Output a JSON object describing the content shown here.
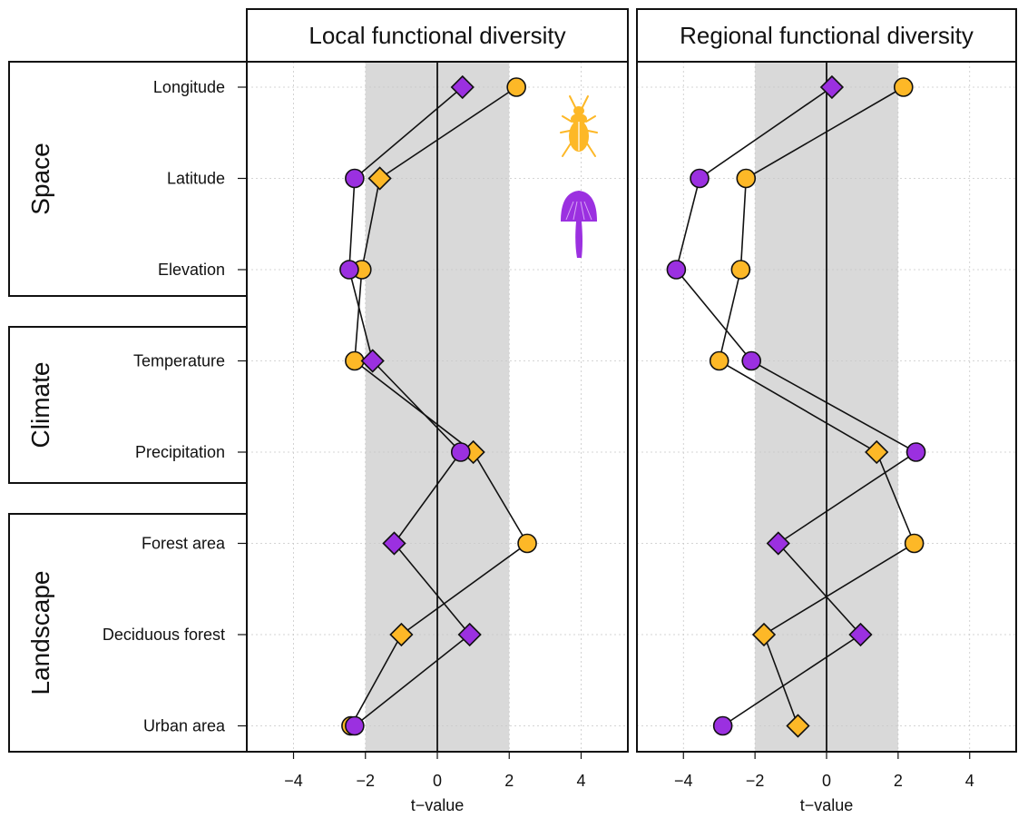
{
  "chart_data": {
    "type": "scatter",
    "xlabel": "t−value",
    "xlim": [
      -5.3,
      5.3
    ],
    "xticks": [
      -4,
      -2,
      0,
      2,
      4
    ],
    "xtick_labels": [
      "−4",
      "−2",
      "0",
      "2",
      "4"
    ],
    "grid": true,
    "shaded_band": [
      -2,
      2
    ],
    "reference_line": 0,
    "colors": {
      "beetles": "#FDB827",
      "fungi": "#9B30E0",
      "band": "#D9D9D9",
      "outline": "#111111"
    },
    "icons": [
      "beetle-icon",
      "mushroom-icon"
    ],
    "groups": [
      {
        "label": "Space",
        "rows": [
          "Longitude",
          "Latitude",
          "Elevation"
        ]
      },
      {
        "label": "Climate",
        "rows": [
          "Temperature",
          "Precipitation"
        ]
      },
      {
        "label": "Landscape",
        "rows": [
          "Forest area",
          "Deciduous forest",
          "Urban area"
        ]
      }
    ],
    "rows": [
      "Longitude",
      "Latitude",
      "Elevation",
      "Temperature",
      "Precipitation",
      "Forest area",
      "Deciduous forest",
      "Urban area"
    ],
    "panels": [
      {
        "title": "Local functional diversity",
        "series": [
          {
            "taxon": "beetles",
            "color": "#FDB827",
            "marker_shapes": [
              "circle",
              "diamond",
              "circle",
              "circle",
              "diamond",
              "circle",
              "diamond",
              "circle"
            ],
            "values": [
              2.2,
              -1.6,
              -2.1,
              -2.3,
              1.0,
              2.5,
              -1.0,
              -2.4
            ]
          },
          {
            "taxon": "fungi",
            "color": "#9B30E0",
            "marker_shapes": [
              "diamond",
              "circle",
              "circle",
              "diamond",
              "circle",
              "diamond",
              "diamond",
              "circle"
            ],
            "values": [
              0.7,
              -2.3,
              -2.45,
              -1.8,
              0.65,
              -1.2,
              0.9,
              -2.3
            ]
          }
        ]
      },
      {
        "title": "Regional functional diversity",
        "series": [
          {
            "taxon": "beetles",
            "color": "#FDB827",
            "marker_shapes": [
              "circle",
              "circle",
              "circle",
              "circle",
              "diamond",
              "circle",
              "diamond",
              "diamond"
            ],
            "values": [
              2.15,
              -2.25,
              -2.4,
              -3.0,
              1.4,
              2.45,
              -1.75,
              -0.8
            ]
          },
          {
            "taxon": "fungi",
            "color": "#9B30E0",
            "marker_shapes": [
              "diamond",
              "circle",
              "circle",
              "circle",
              "circle",
              "diamond",
              "diamond",
              "circle"
            ],
            "values": [
              0.15,
              -3.55,
              -4.2,
              -2.1,
              2.5,
              -1.35,
              0.95,
              -2.9
            ]
          }
        ]
      }
    ]
  }
}
